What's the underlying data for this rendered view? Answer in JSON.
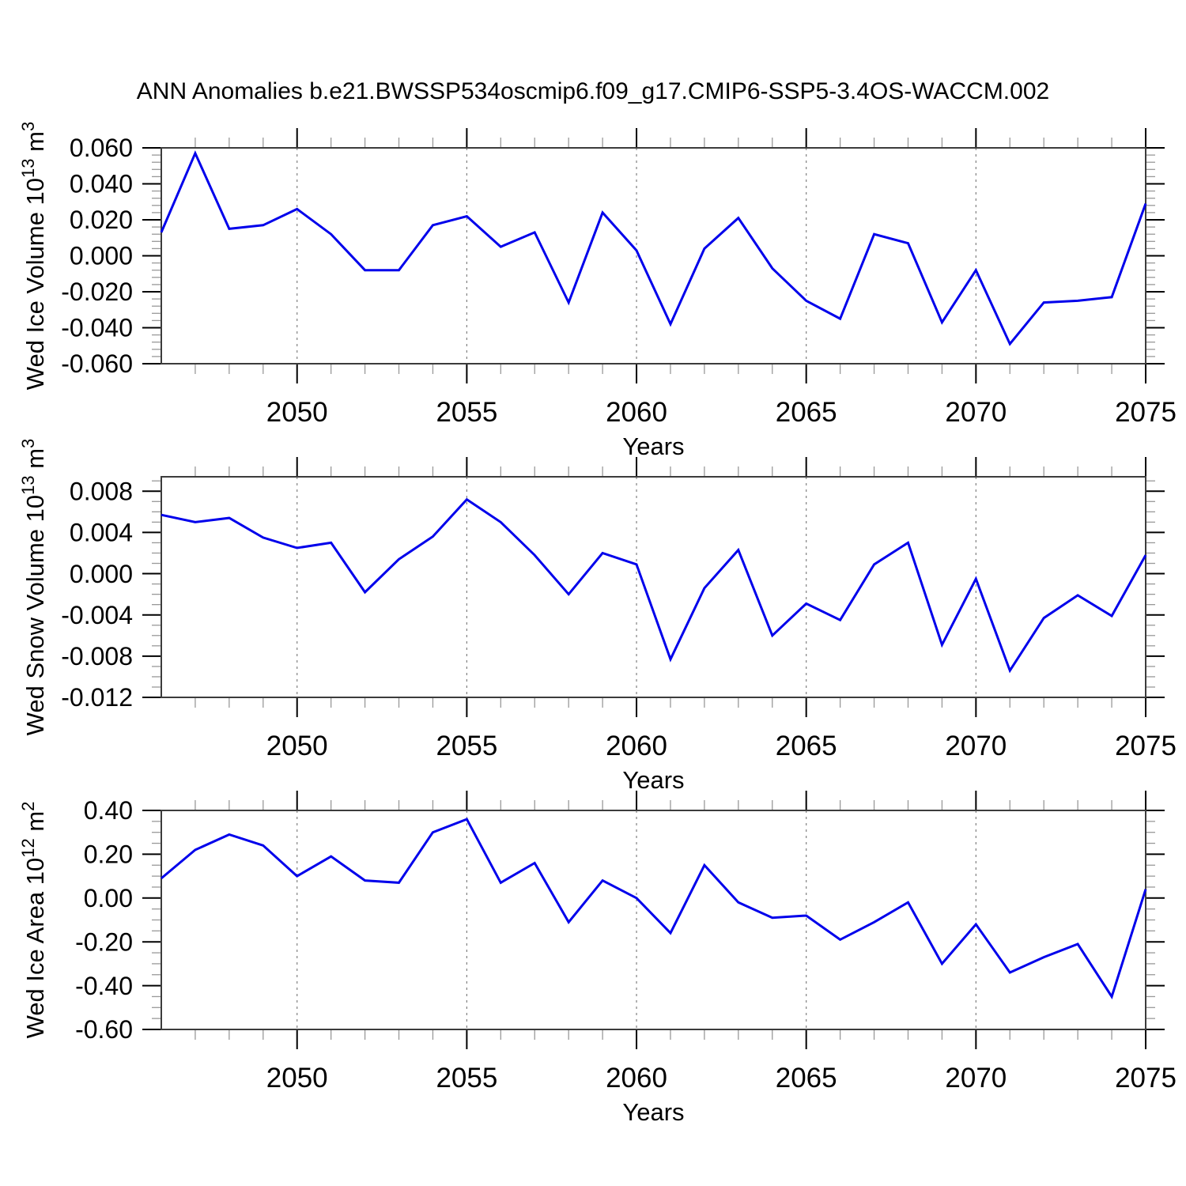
{
  "title": "ANN Anomalies b.e21.BWSSP534oscmip6.f09_g17.CMIP6-SSP5-3.4OS-WACCM.002",
  "colors": {
    "line": "#0000EB",
    "frame": "#3c3c3c",
    "major_tick": "#000000",
    "minor_tick": "#999999",
    "gridline": "#808080",
    "text": "#000000",
    "background": "#ffffff"
  },
  "years": [
    2046,
    2047,
    2048,
    2049,
    2050,
    2051,
    2052,
    2053,
    2054,
    2055,
    2056,
    2057,
    2058,
    2059,
    2060,
    2061,
    2062,
    2063,
    2064,
    2065,
    2066,
    2067,
    2068,
    2069,
    2070,
    2071,
    2072,
    2073,
    2074,
    2075
  ],
  "xticks_major": [
    2050,
    2055,
    2060,
    2065,
    2070,
    2075
  ],
  "grid_years": [
    2050,
    2055,
    2060,
    2065,
    2070
  ],
  "chart_data": [
    {
      "type": "line",
      "panel": "wed-ice-volume",
      "ylabel_text": "Wed Ice Volume 10^13 m^3",
      "ylabel_parts": [
        {
          "t": "Wed Ice Volume 10"
        },
        {
          "t": "13",
          "sup": true
        },
        {
          "t": " m"
        },
        {
          "t": "3",
          "sup": true
        }
      ],
      "xlabel": "Years",
      "xlim": [
        2046,
        2075
      ],
      "ylim": [
        -0.06,
        0.06
      ],
      "yticks": [
        0.06,
        0.04,
        0.02,
        0.0,
        -0.02,
        -0.04,
        -0.06
      ],
      "ytick_labels": [
        "0.060",
        "0.040",
        "0.020",
        "0.000",
        "-0.020",
        "-0.040",
        "-0.060"
      ],
      "y_minor_step": 0.004,
      "grid": "vertical-dashed",
      "legend": "none",
      "x": [
        2046,
        2047,
        2048,
        2049,
        2050,
        2051,
        2052,
        2053,
        2054,
        2055,
        2056,
        2057,
        2058,
        2059,
        2060,
        2061,
        2062,
        2063,
        2064,
        2065,
        2066,
        2067,
        2068,
        2069,
        2070,
        2071,
        2072,
        2073,
        2074,
        2075
      ],
      "values": [
        0.013,
        0.057,
        0.015,
        0.017,
        0.026,
        0.012,
        -0.008,
        -0.008,
        0.017,
        0.022,
        0.005,
        0.013,
        -0.026,
        0.024,
        0.003,
        -0.038,
        0.004,
        0.021,
        -0.007,
        -0.025,
        -0.035,
        0.012,
        0.007,
        -0.037,
        -0.008,
        -0.049,
        -0.026,
        -0.025,
        -0.023,
        0.029
      ]
    },
    {
      "type": "line",
      "panel": "wed-snow-volume",
      "ylabel_text": "Wed Snow Volume 10^13 m^3",
      "ylabel_parts": [
        {
          "t": "Wed Snow Volume 10"
        },
        {
          "t": "13",
          "sup": true
        },
        {
          "t": " m"
        },
        {
          "t": "3",
          "sup": true
        }
      ],
      "xlabel": "Years",
      "xlim": [
        2046,
        2075
      ],
      "ylim": [
        -0.012,
        0.0094
      ],
      "yticks": [
        0.008,
        0.004,
        0.0,
        -0.004,
        -0.008,
        -0.012
      ],
      "ytick_labels": [
        "0.008",
        "0.004",
        "0.000",
        "-0.004",
        "-0.008",
        "-0.012"
      ],
      "y_minor_step": 0.001,
      "grid": "vertical-dashed",
      "legend": "none",
      "x": [
        2046,
        2047,
        2048,
        2049,
        2050,
        2051,
        2052,
        2053,
        2054,
        2055,
        2056,
        2057,
        2058,
        2059,
        2060,
        2061,
        2062,
        2063,
        2064,
        2065,
        2066,
        2067,
        2068,
        2069,
        2070,
        2071,
        2072,
        2073,
        2074,
        2075
      ],
      "values": [
        0.0057,
        0.005,
        0.0054,
        0.0035,
        0.0025,
        0.003,
        -0.0018,
        0.0014,
        0.0036,
        0.0072,
        0.005,
        0.0018,
        -0.002,
        0.002,
        0.0009,
        -0.0083,
        -0.0014,
        0.0023,
        -0.006,
        -0.0029,
        -0.0045,
        0.0009,
        0.003,
        -0.0069,
        -0.0005,
        -0.0094,
        -0.0043,
        -0.0021,
        -0.0041,
        0.0018
      ]
    },
    {
      "type": "line",
      "panel": "wed-ice-area",
      "ylabel_text": "Wed Ice Area 10^12 m^2",
      "ylabel_parts": [
        {
          "t": "Wed Ice Area 10"
        },
        {
          "t": "12",
          "sup": true
        },
        {
          "t": " m"
        },
        {
          "t": "2",
          "sup": true
        }
      ],
      "xlabel": "Years",
      "xlim": [
        2046,
        2075
      ],
      "ylim": [
        -0.6,
        0.4
      ],
      "yticks": [
        0.4,
        0.2,
        0.0,
        -0.2,
        -0.4,
        -0.6
      ],
      "ytick_labels": [
        "0.40",
        "0.20",
        "0.00",
        "-0.20",
        "-0.40",
        "-0.60"
      ],
      "y_minor_step": 0.05,
      "grid": "vertical-dashed",
      "legend": "none",
      "x": [
        2046,
        2047,
        2048,
        2049,
        2050,
        2051,
        2052,
        2053,
        2054,
        2055,
        2056,
        2057,
        2058,
        2059,
        2060,
        2061,
        2062,
        2063,
        2064,
        2065,
        2066,
        2067,
        2068,
        2069,
        2070,
        2071,
        2072,
        2073,
        2074,
        2075
      ],
      "values": [
        0.09,
        0.22,
        0.29,
        0.24,
        0.1,
        0.19,
        0.08,
        0.07,
        0.3,
        0.36,
        0.07,
        0.16,
        -0.11,
        0.08,
        0.0,
        -0.16,
        0.15,
        -0.02,
        -0.09,
        -0.08,
        -0.19,
        -0.11,
        -0.02,
        -0.3,
        -0.12,
        -0.34,
        -0.27,
        -0.21,
        -0.45,
        0.04
      ]
    }
  ]
}
